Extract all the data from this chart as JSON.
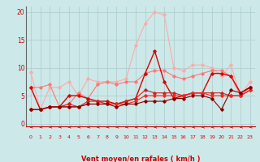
{
  "xlabel": "Vent moyen/en rafales ( km/h )",
  "x_ticks": [
    0,
    1,
    2,
    3,
    4,
    5,
    6,
    7,
    8,
    9,
    10,
    11,
    12,
    13,
    14,
    15,
    16,
    17,
    18,
    19,
    20,
    21,
    22,
    23
  ],
  "ylim": [
    -0.5,
    21
  ],
  "xlim": [
    -0.5,
    23.5
  ],
  "yticks": [
    0,
    5,
    10,
    15,
    20
  ],
  "background_color": "#cce8e8",
  "grid_color": "#aacccc",
  "series": [
    {
      "color": "#ffaaaa",
      "lw": 0.8,
      "marker": "D",
      "markersize": 1.8,
      "values": [
        9.2,
        2.5,
        6.5,
        6.5,
        7.5,
        5.0,
        8.0,
        7.5,
        7.5,
        7.5,
        8.0,
        14.0,
        18.0,
        20.0,
        19.5,
        10.0,
        9.5,
        10.5,
        10.5,
        10.0,
        8.5,
        10.5,
        5.0,
        7.5
      ]
    },
    {
      "color": "#ff7777",
      "lw": 0.8,
      "marker": "D",
      "markersize": 1.8,
      "values": [
        6.5,
        6.5,
        7.0,
        3.0,
        3.5,
        5.5,
        4.5,
        7.0,
        7.5,
        7.0,
        7.5,
        7.5,
        9.0,
        9.5,
        9.5,
        8.5,
        8.0,
        8.5,
        9.0,
        9.5,
        9.5,
        8.5,
        5.0,
        6.5
      ]
    },
    {
      "color": "#dd0000",
      "lw": 1.0,
      "marker": "D",
      "markersize": 1.8,
      "values": [
        6.5,
        2.5,
        3.0,
        3.0,
        5.0,
        5.0,
        4.5,
        4.0,
        4.0,
        3.5,
        4.0,
        4.5,
        9.0,
        13.0,
        7.5,
        4.5,
        5.0,
        5.5,
        5.5,
        9.0,
        9.0,
        8.5,
        5.5,
        6.5
      ]
    },
    {
      "color": "#cc2222",
      "lw": 0.8,
      "marker": "D",
      "markersize": 1.8,
      "values": [
        2.5,
        2.5,
        3.0,
        3.0,
        3.5,
        3.0,
        4.0,
        4.0,
        3.5,
        3.5,
        4.0,
        4.5,
        6.0,
        5.5,
        5.5,
        5.5,
        5.0,
        5.5,
        5.5,
        5.5,
        5.5,
        5.0,
        5.0,
        6.0
      ]
    },
    {
      "color": "#ff2222",
      "lw": 0.8,
      "marker": "D",
      "markersize": 1.8,
      "values": [
        2.5,
        2.5,
        3.0,
        3.0,
        3.0,
        3.0,
        3.5,
        3.5,
        3.5,
        3.5,
        3.5,
        4.0,
        5.0,
        5.0,
        5.0,
        5.0,
        5.0,
        5.5,
        5.5,
        5.0,
        5.0,
        5.0,
        5.0,
        6.0
      ]
    },
    {
      "color": "#880000",
      "lw": 0.8,
      "marker": "D",
      "markersize": 1.8,
      "values": [
        2.5,
        2.5,
        3.0,
        3.0,
        3.0,
        3.0,
        3.5,
        3.5,
        3.5,
        3.0,
        3.5,
        3.5,
        4.0,
        4.0,
        4.0,
        4.5,
        4.5,
        5.0,
        5.0,
        4.5,
        2.5,
        6.0,
        5.5,
        6.5
      ]
    }
  ],
  "arrow_color": "#cc0000",
  "xlabel_color": "#cc0000",
  "tick_color": "#cc0000",
  "spine_color": "#666666",
  "hline_color": "#cc0000",
  "hline_y": -0.5
}
